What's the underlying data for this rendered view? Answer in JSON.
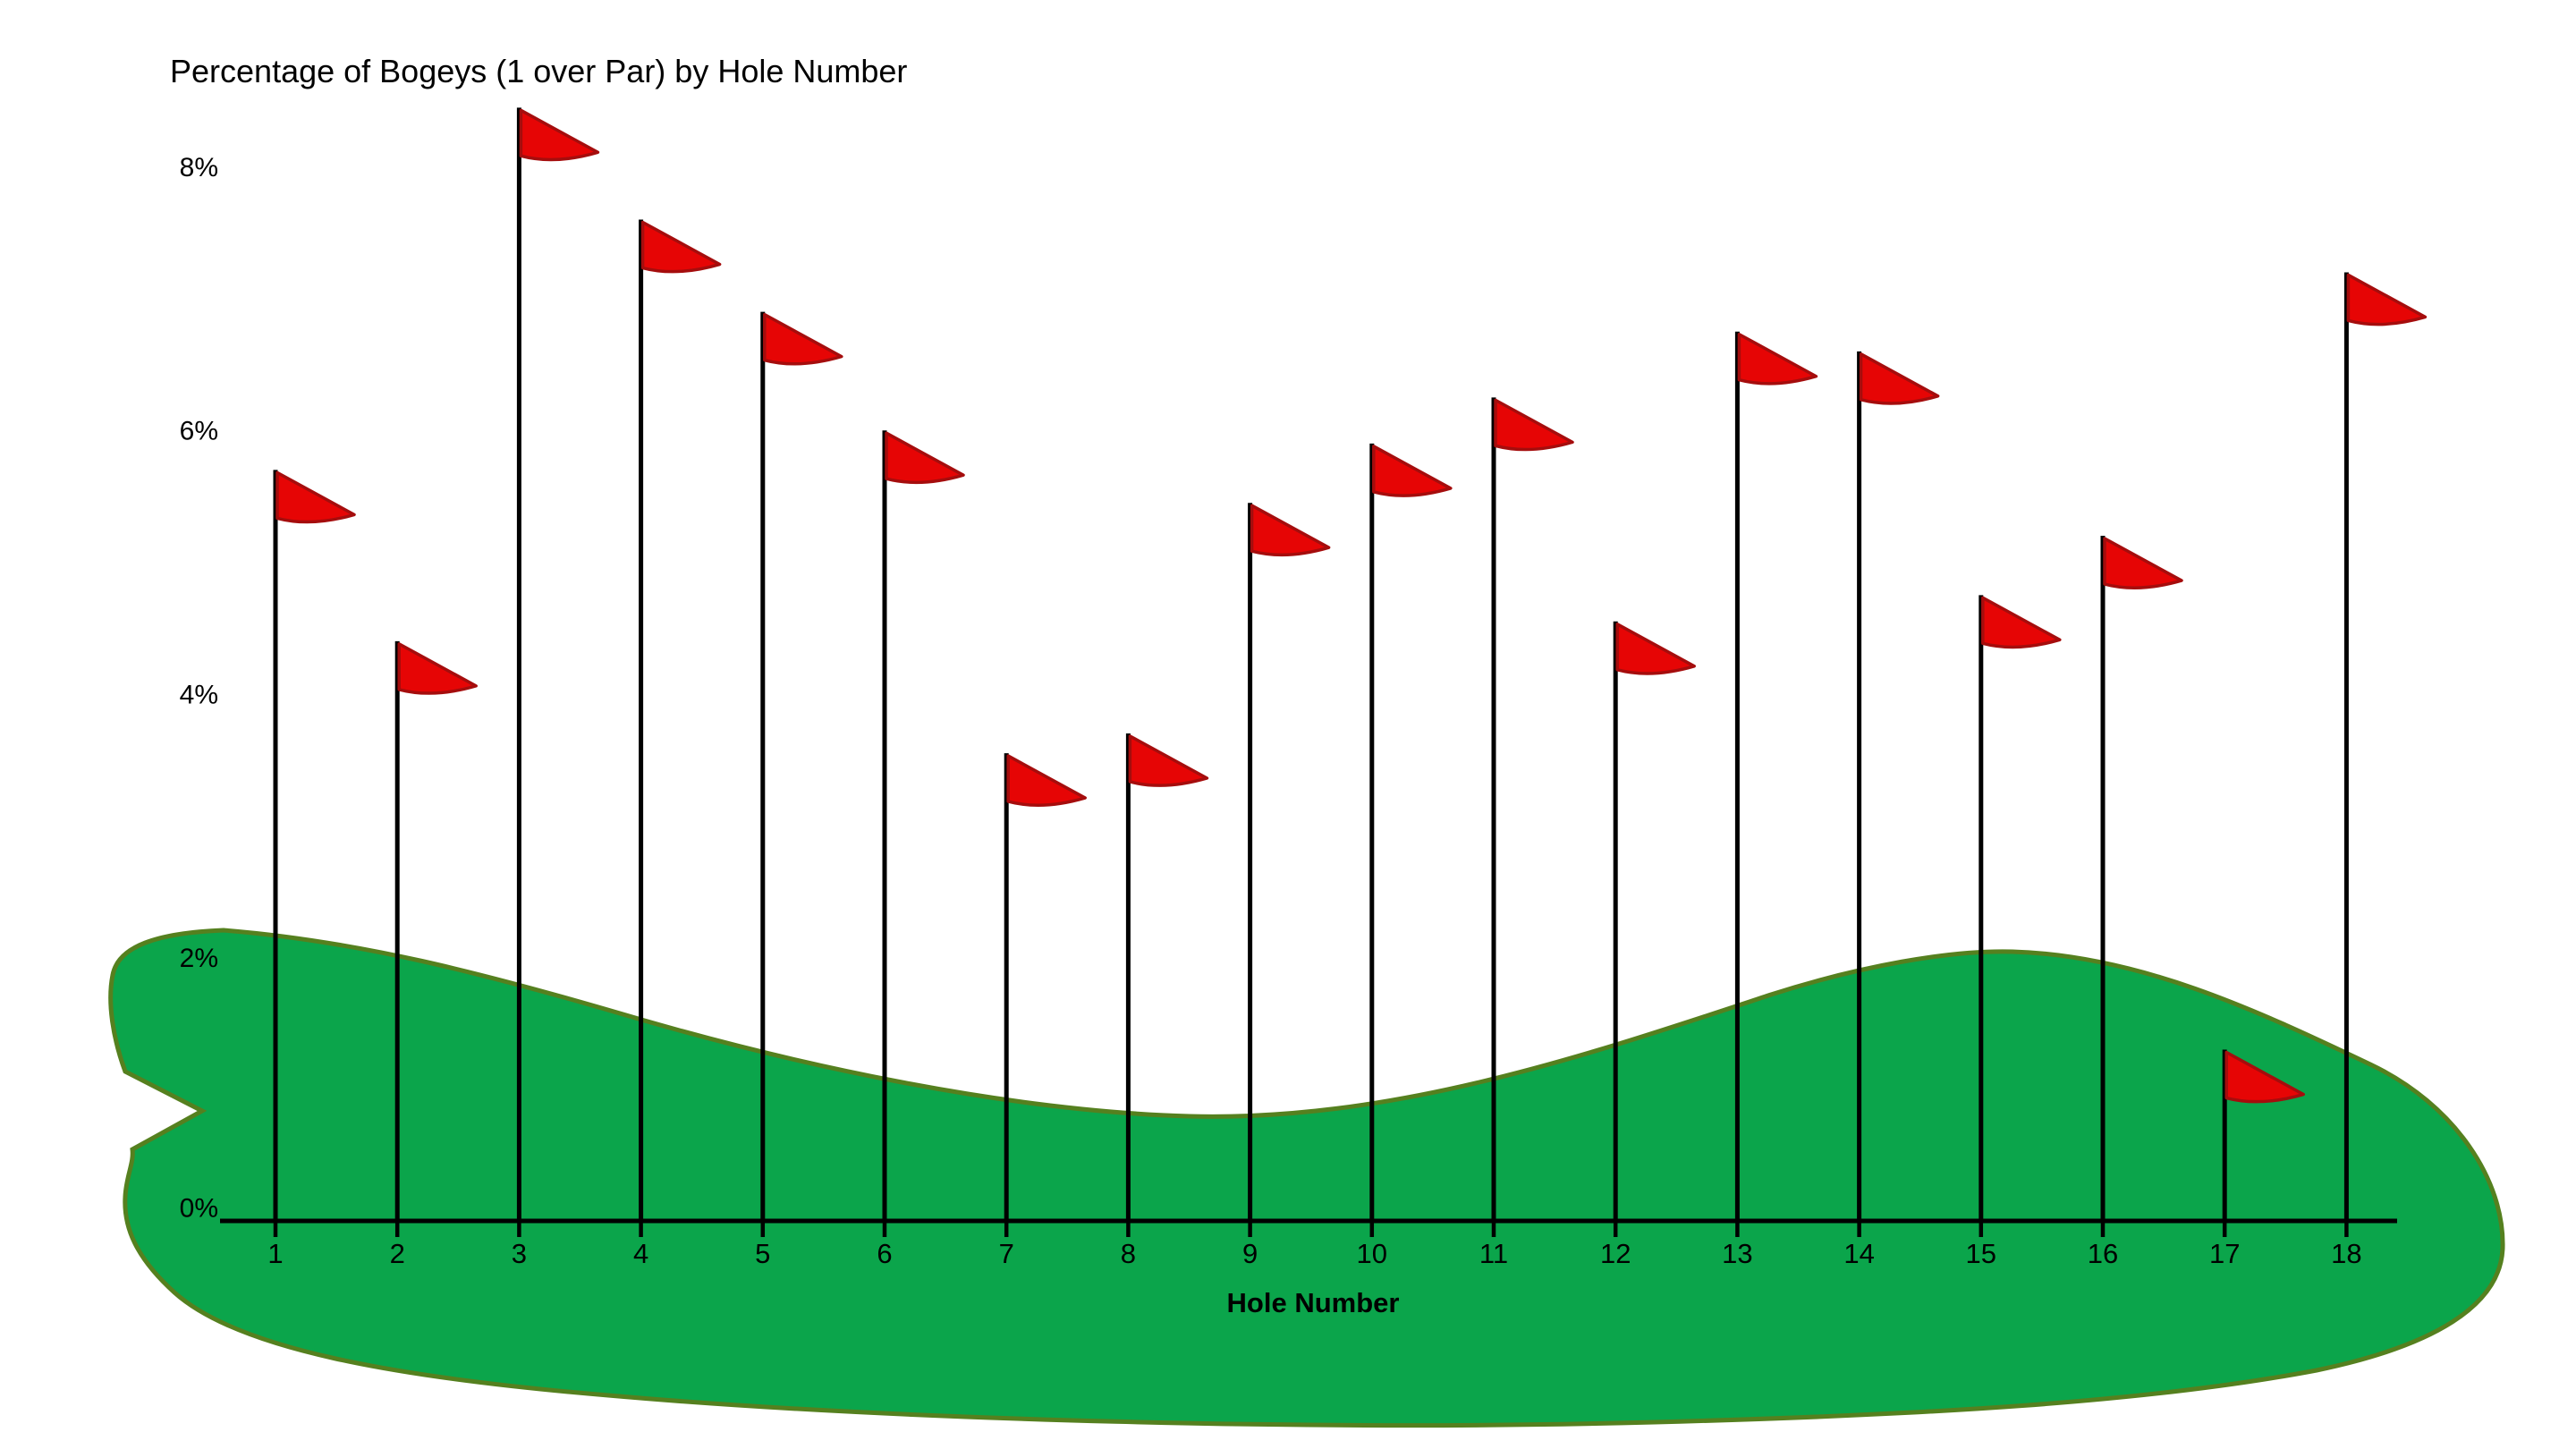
{
  "chart_data": {
    "type": "bar",
    "style": "golf-flag-pictogram",
    "title": "Percentage of Bogeys (1 over Par) by Hole Number",
    "xlabel": "Hole Number",
    "ylabel": "",
    "unit": "%",
    "categories": [
      "1",
      "2",
      "3",
      "4",
      "5",
      "6",
      "7",
      "8",
      "9",
      "10",
      "11",
      "12",
      "13",
      "14",
      "15",
      "16",
      "17",
      "18"
    ],
    "values": [
      5.7,
      4.4,
      8.45,
      7.6,
      6.9,
      6.0,
      3.55,
      3.7,
      5.45,
      5.9,
      6.25,
      4.55,
      6.75,
      6.6,
      4.75,
      5.2,
      1.3,
      7.2
    ],
    "y_ticks": [
      0,
      2,
      4,
      6,
      8
    ],
    "y_tick_labels": [
      "0%",
      "2%",
      "4%",
      "6%",
      "8%"
    ],
    "ylim": [
      0,
      8.8
    ],
    "grid": false,
    "legend": false,
    "marker": "red-golf-flag-on-pole",
    "background_shape": "golf-green-fairway"
  },
  "colors": {
    "flag_fill": "#e60505",
    "flag_outline": "#a50d0d",
    "green_fill": "#0ba54b",
    "green_outline": "#55801f",
    "axis": "#000000",
    "text": "#000000",
    "background": "#ffffff"
  }
}
